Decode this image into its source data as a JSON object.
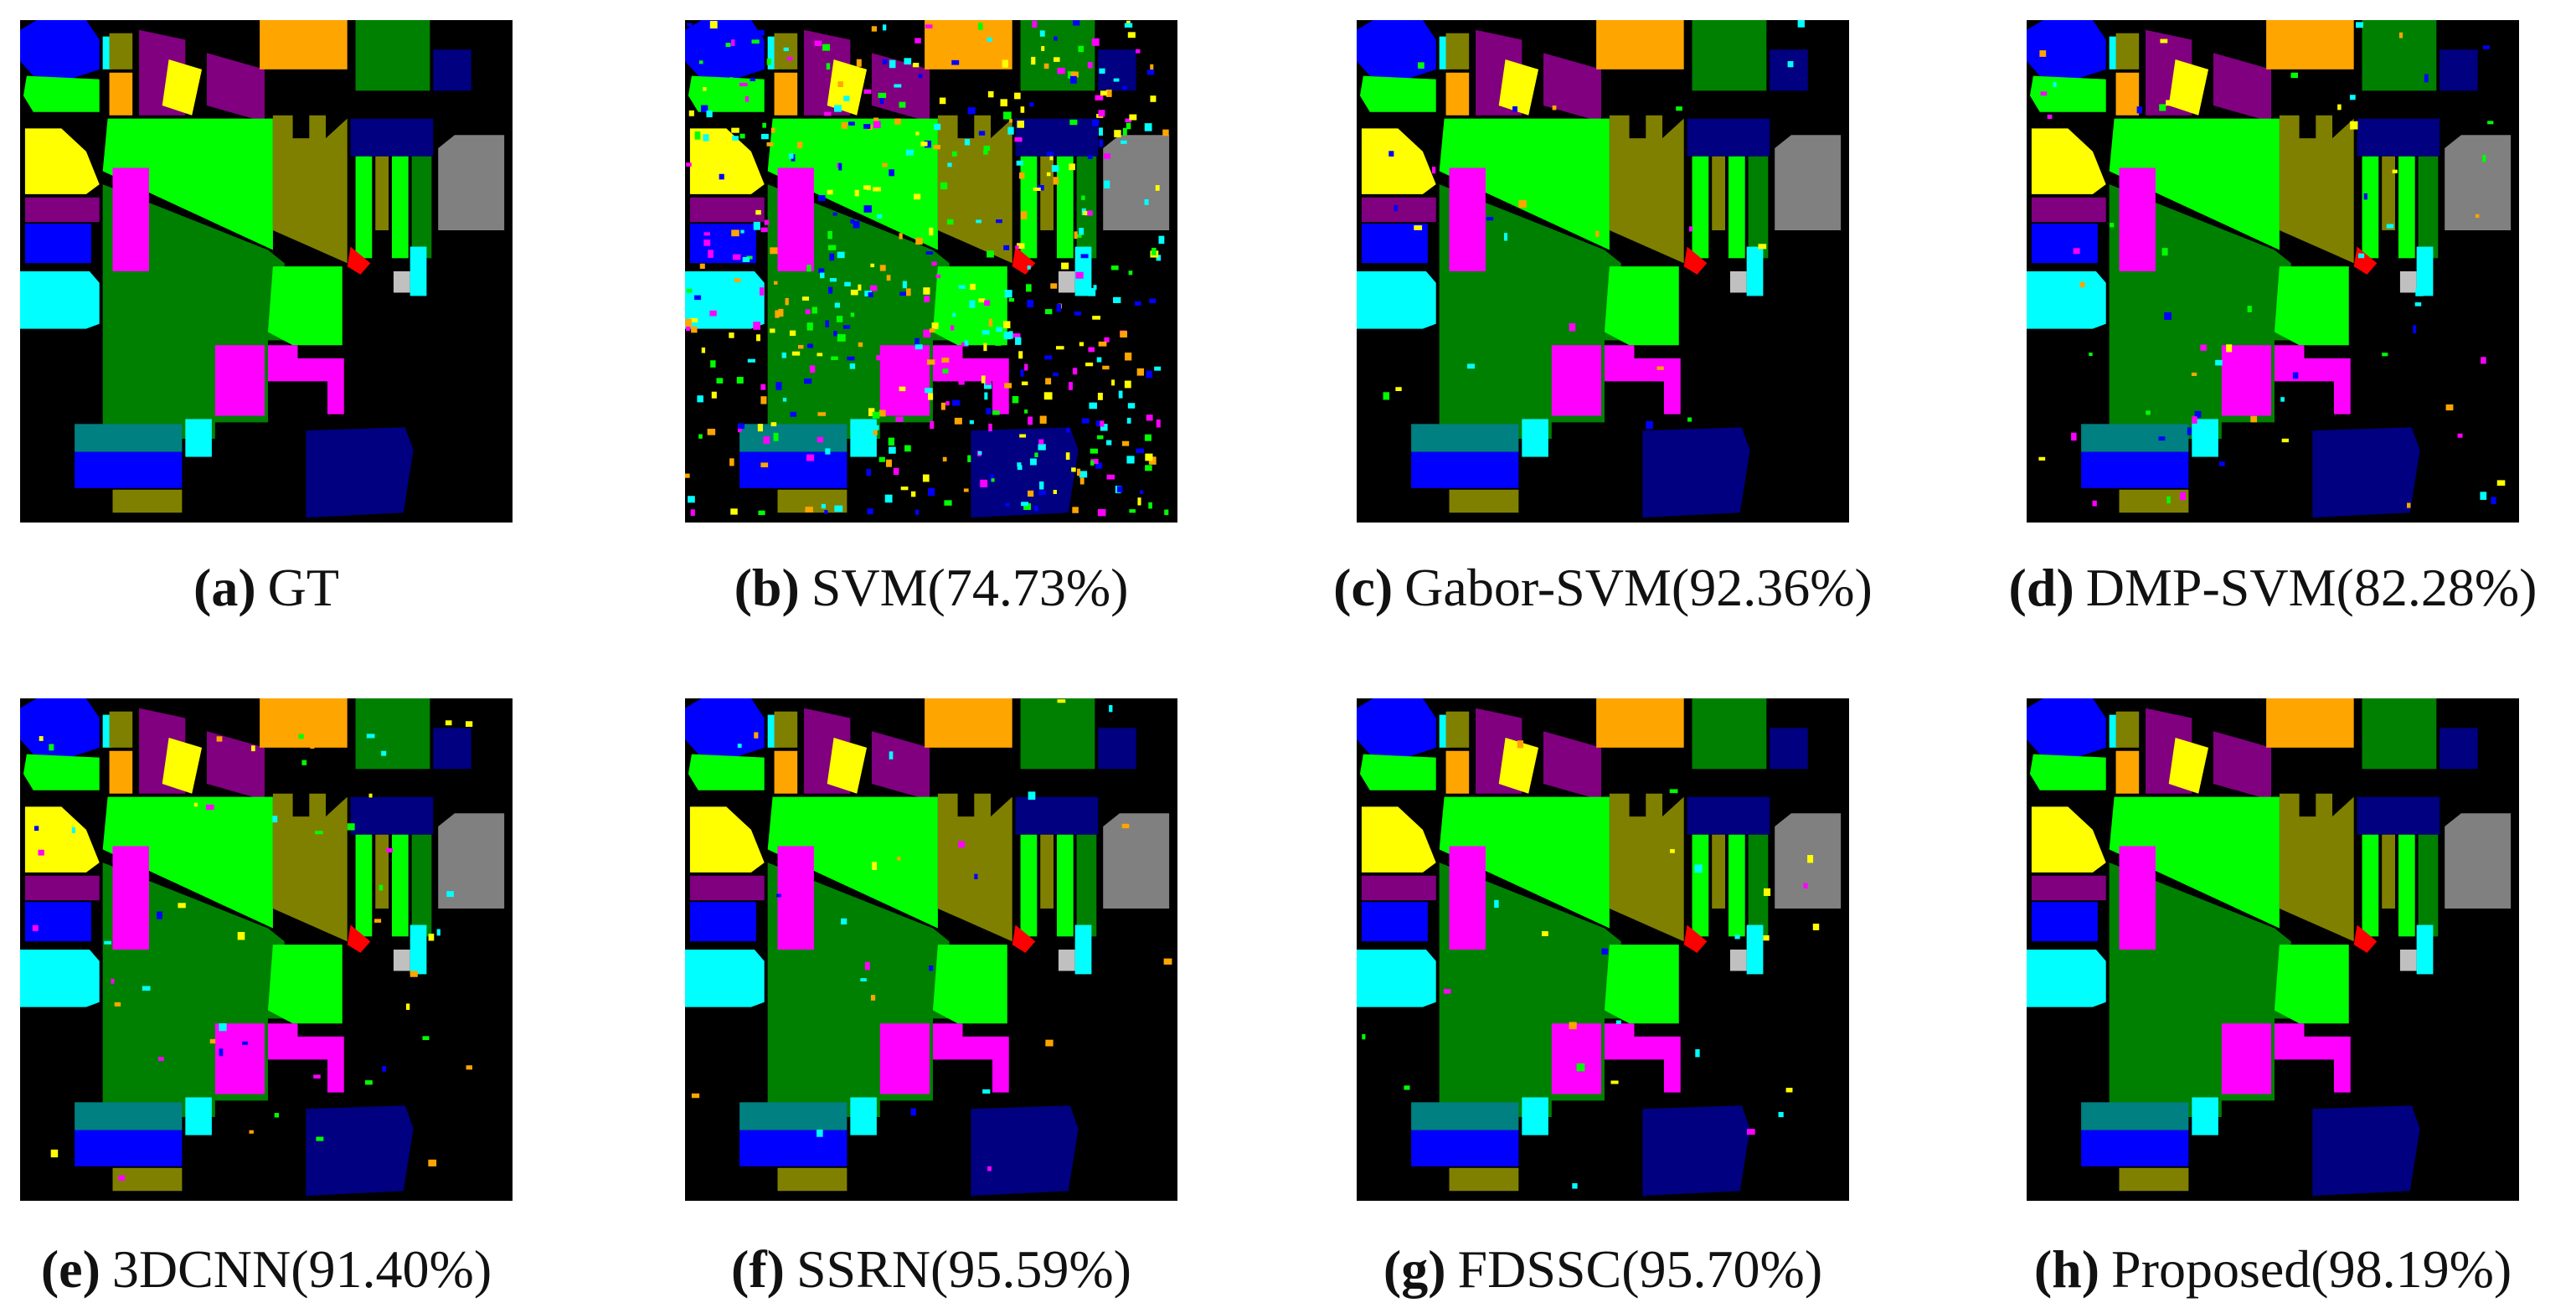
{
  "panels": [
    {
      "label": "(a)",
      "caption": "GT"
    },
    {
      "label": "(b)",
      "caption": "SVM(74.73%)"
    },
    {
      "label": "(c)",
      "caption": "Gabor-SVM(92.36%)"
    },
    {
      "label": "(d)",
      "caption": "DMP-SVM(82.28%)"
    },
    {
      "label": "(e)",
      "caption": "3DCNN(91.40%)"
    },
    {
      "label": "(f)",
      "caption": "SSRN(95.59%)"
    },
    {
      "label": "(g)",
      "caption": "FDSSC(95.70%)"
    },
    {
      "label": "(h)",
      "caption": "Proposed(98.19%)"
    }
  ]
}
